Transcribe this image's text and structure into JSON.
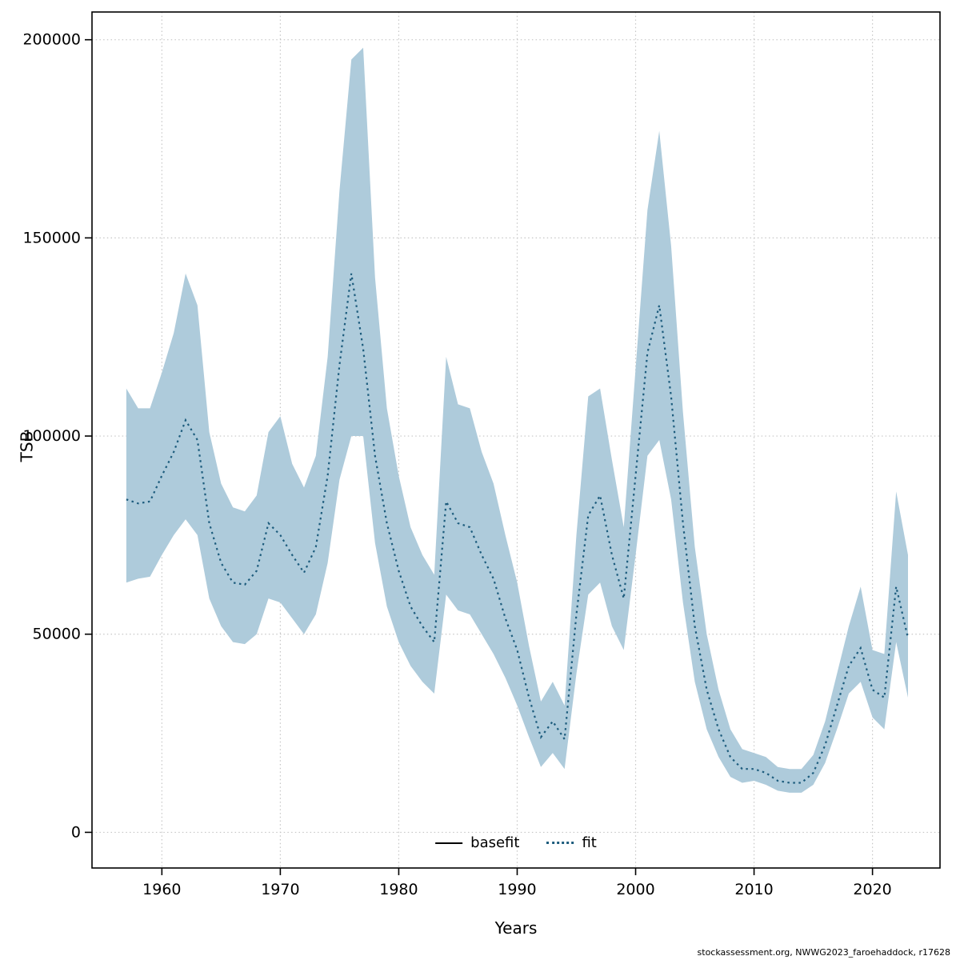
{
  "figure": {
    "x_axis_title": "Years",
    "y_axis_title": "TSB",
    "footer": "stockassessment.org, NWWG2023_faroehaddock, r17628"
  },
  "legend": [
    {
      "label": "basefit",
      "style": "solid",
      "color": "#000000"
    },
    {
      "label": "fit",
      "style": "dotted",
      "color": "#1d5c7d"
    }
  ],
  "chart_data": {
    "type": "line",
    "title": "",
    "xlabel": "Years",
    "ylabel": "TSB",
    "grid": true,
    "legend_position": "bottom-center-inside",
    "band_color": "#aecbdb",
    "line_color": "#1d5c7d",
    "grid_color": "#c6c6c6",
    "x_ticks": [
      1960,
      1970,
      1980,
      1990,
      2000,
      2010,
      2020
    ],
    "y_ticks": [
      0,
      50000,
      100000,
      150000,
      200000
    ],
    "xlim": [
      1954.1,
      2025.7
    ],
    "ylim": [
      -9000,
      207000
    ],
    "years": [
      1957,
      1958,
      1959,
      1960,
      1961,
      1962,
      1963,
      1964,
      1965,
      1966,
      1967,
      1968,
      1969,
      1970,
      1971,
      1972,
      1973,
      1974,
      1975,
      1976,
      1977,
      1978,
      1979,
      1980,
      1981,
      1982,
      1983,
      1984,
      1985,
      1986,
      1987,
      1988,
      1989,
      1990,
      1991,
      1992,
      1993,
      1994,
      1995,
      1996,
      1997,
      1998,
      1999,
      2000,
      2001,
      2002,
      2003,
      2004,
      2005,
      2006,
      2007,
      2008,
      2009,
      2010,
      2011,
      2012,
      2013,
      2014,
      2015,
      2016,
      2017,
      2018,
      2019,
      2020,
      2021,
      2022,
      2023
    ],
    "series": [
      {
        "name": "fit",
        "values": [
          84000,
          83000,
          83500,
          90000,
          96000,
          104000,
          99000,
          78000,
          68000,
          63000,
          62500,
          66000,
          78000,
          75000,
          70000,
          65500,
          72000,
          90000,
          118000,
          141000,
          122000,
          95000,
          78000,
          66000,
          57000,
          52000,
          48000,
          83500,
          78000,
          77000,
          70000,
          64000,
          54000,
          46000,
          34000,
          24000,
          28000,
          23500,
          55000,
          80000,
          85000,
          70000,
          59000,
          90000,
          121000,
          133000,
          110000,
          78000,
          52000,
          36000,
          26000,
          19000,
          16000,
          16000,
          15000,
          13000,
          12500,
          12500,
          15000,
          22000,
          32000,
          42000,
          46500,
          36000,
          34000,
          62000,
          49000
        ]
      }
    ],
    "band": {
      "lower": [
        63000,
        64000,
        64500,
        70000,
        75000,
        79000,
        75000,
        59000,
        52000,
        48000,
        47500,
        50000,
        59000,
        58000,
        54000,
        50000,
        55000,
        68000,
        89000,
        100000,
        100000,
        73000,
        57000,
        48000,
        42000,
        38000,
        35000,
        60000,
        56000,
        55000,
        50000,
        45000,
        39000,
        32000,
        24000,
        16500,
        20000,
        16000,
        40000,
        60000,
        63000,
        52000,
        46000,
        70000,
        95000,
        99000,
        84000,
        58000,
        38000,
        26000,
        19000,
        14000,
        12500,
        13000,
        12000,
        10500,
        10000,
        10000,
        12000,
        17500,
        26000,
        35000,
        38000,
        29000,
        26000,
        48000,
        34000
      ],
      "upper": [
        112000,
        107000,
        107000,
        116000,
        126000,
        141000,
        133000,
        101000,
        88000,
        82000,
        81000,
        85000,
        101000,
        105000,
        93000,
        87000,
        95000,
        120000,
        162000,
        195000,
        198000,
        140000,
        107000,
        90000,
        77000,
        70000,
        65000,
        120000,
        108000,
        107000,
        96000,
        88000,
        75000,
        63000,
        47000,
        33000,
        38000,
        32000,
        75000,
        110000,
        112000,
        94000,
        77000,
        117000,
        157000,
        177000,
        148000,
        106000,
        72000,
        50000,
        36000,
        26000,
        21000,
        20000,
        19000,
        16500,
        16000,
        16000,
        19500,
        28000,
        40000,
        52000,
        62000,
        46000,
        45000,
        86000,
        70000
      ]
    }
  }
}
